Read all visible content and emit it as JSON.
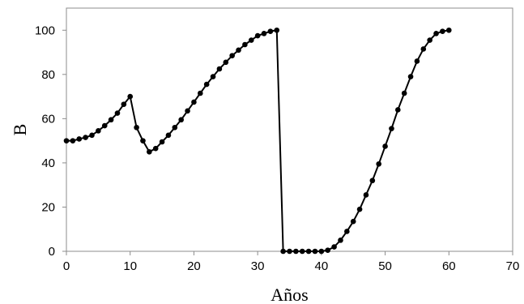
{
  "chart_data": {
    "type": "line",
    "title": "",
    "xlabel": "Años",
    "ylabel": "B",
    "xlim": [
      0,
      70
    ],
    "ylim": [
      0,
      110
    ],
    "xticks": [
      0,
      10,
      20,
      30,
      40,
      50,
      60,
      70
    ],
    "yticks": [
      0,
      20,
      40,
      60,
      80,
      100
    ],
    "grid": false,
    "legend": "none",
    "color": "#000000",
    "marker": "circle",
    "series": [
      {
        "x": [
          0,
          1,
          2,
          3,
          4,
          5,
          6,
          7,
          8,
          9,
          10,
          11,
          12,
          13,
          14,
          15,
          16,
          17,
          18,
          19,
          20,
          21,
          22,
          23,
          24,
          25,
          26,
          27,
          28,
          29,
          30,
          31,
          32,
          33,
          34,
          35,
          36,
          37,
          38,
          39,
          40,
          41,
          42,
          43,
          44,
          45,
          46,
          47,
          48,
          49,
          50,
          51,
          52,
          53,
          54,
          55,
          56,
          57,
          58,
          59,
          60
        ],
        "y": [
          50,
          50,
          50.8,
          51.5,
          52.5,
          54.5,
          56.8,
          59.5,
          62.5,
          66.5,
          70,
          56,
          50,
          45,
          46.5,
          49.5,
          52.5,
          56,
          59.5,
          63.5,
          67.5,
          71.5,
          75.5,
          79,
          82.5,
          85.5,
          88.5,
          91,
          93.5,
          95.5,
          97.5,
          98.5,
          99.5,
          100,
          0,
          0,
          0,
          0,
          0,
          0,
          0,
          0.5,
          2,
          5,
          9,
          13.5,
          19,
          25.5,
          32,
          39.5,
          47.5,
          55.5,
          64,
          71.5,
          79,
          86,
          91.5,
          95.5,
          98.5,
          99.5,
          100
        ]
      }
    ]
  }
}
